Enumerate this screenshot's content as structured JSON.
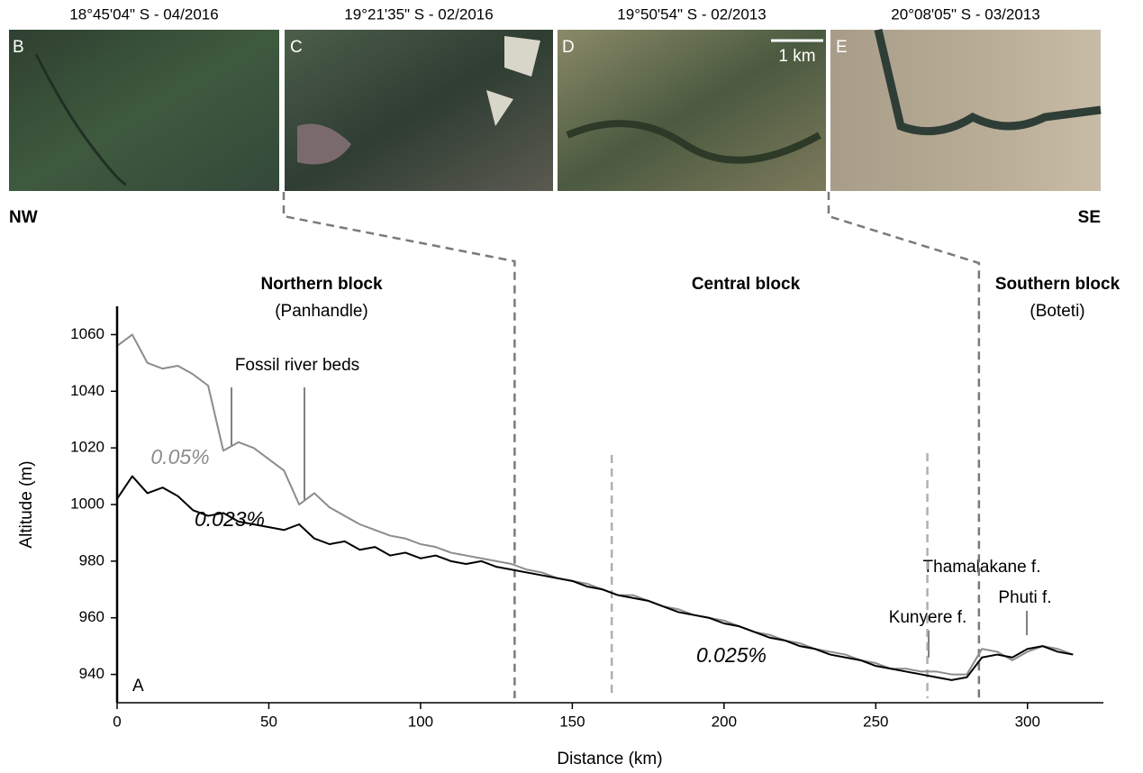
{
  "chart_data": {
    "type": "line",
    "xlabel": "Distance (km)",
    "ylabel": "Altitude (m)",
    "xlim": [
      0,
      325
    ],
    "ylim": [
      930,
      1070
    ],
    "xticks": [
      0,
      50,
      100,
      150,
      200,
      250,
      300
    ],
    "yticks": [
      940,
      960,
      980,
      1000,
      1020,
      1040,
      1060
    ],
    "x": [
      0,
      5,
      10,
      15,
      20,
      25,
      30,
      35,
      40,
      45,
      50,
      55,
      60,
      65,
      70,
      75,
      80,
      85,
      90,
      95,
      100,
      105,
      110,
      115,
      120,
      125,
      130,
      135,
      140,
      145,
      150,
      155,
      160,
      165,
      170,
      175,
      180,
      185,
      190,
      195,
      200,
      205,
      210,
      215,
      220,
      225,
      230,
      235,
      240,
      245,
      250,
      255,
      260,
      265,
      270,
      275,
      280,
      285,
      290,
      295,
      300,
      305,
      310,
      315
    ],
    "series": [
      {
        "color": "#8c8c8c",
        "values": [
          1056,
          1060,
          1050,
          1048,
          1049,
          1046,
          1042,
          1019,
          1022,
          1020,
          1016,
          1012,
          1000,
          1004,
          999,
          996,
          993,
          991,
          989,
          988,
          986,
          985,
          983,
          982,
          981,
          980,
          979,
          977,
          976,
          974,
          973,
          972,
          970,
          968,
          968,
          966,
          964,
          963,
          961,
          960,
          959,
          957,
          955,
          954,
          952,
          951,
          949,
          948,
          947,
          945,
          944,
          942,
          942,
          941,
          941,
          940,
          940,
          949,
          948,
          945,
          948,
          950,
          949,
          947
        ]
      },
      {
        "color": "#000000",
        "values": [
          1002,
          1010,
          1004,
          1006,
          1003,
          998,
          996,
          997,
          994,
          993,
          992,
          991,
          993,
          988,
          986,
          987,
          984,
          985,
          982,
          983,
          981,
          982,
          980,
          979,
          980,
          978,
          977,
          976,
          975,
          974,
          973,
          971,
          970,
          968,
          967,
          966,
          964,
          962,
          961,
          960,
          958,
          957,
          955,
          953,
          952,
          950,
          949,
          947,
          946,
          945,
          943,
          942,
          941,
          940,
          939,
          938,
          939,
          946,
          947,
          946,
          949,
          950,
          948,
          947
        ]
      }
    ],
    "boundaries": [
      131,
      163,
      267,
      284
    ],
    "annotations": [
      "Fossil river beds",
      "0.05%",
      "0.023%",
      "0.025%",
      "Kunyere f.",
      "Thamalakane f.",
      "Phuti f."
    ],
    "regions": [
      {
        "name": "Northern block",
        "sub": "(Panhandle)"
      },
      {
        "name": "Central block"
      },
      {
        "name": "Southern block",
        "sub": "(Boteti)"
      }
    ],
    "panel_label": "A",
    "directions": [
      "NW",
      "SE"
    ],
    "panels": [
      {
        "letter": "B",
        "caption": "18°45'04\" S - 04/2016"
      },
      {
        "letter": "C",
        "caption": "19°21'35\" S - 02/2016"
      },
      {
        "letter": "D",
        "caption": "19°50'54\" S - 02/2013"
      },
      {
        "letter": "E",
        "caption": "20°08'05\" S - 03/2013"
      }
    ],
    "scale_bar": "1 km"
  }
}
